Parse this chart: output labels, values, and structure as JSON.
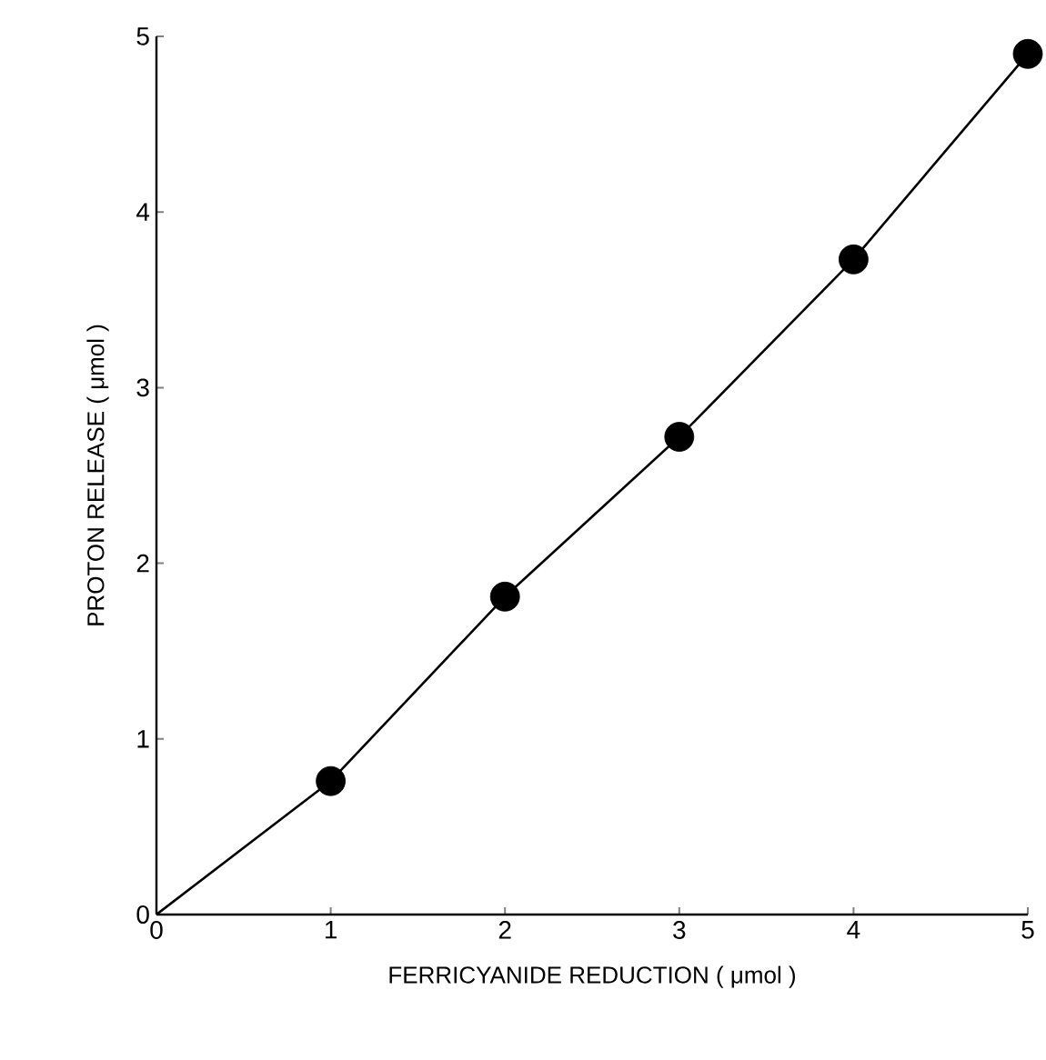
{
  "chart_data": {
    "type": "scatter",
    "xlabel": "FERRICYANIDE REDUCTION ( μmol )",
    "ylabel": "PROTON RELEASE ( μmol )",
    "xlim": [
      0,
      5
    ],
    "ylim": [
      0,
      5
    ],
    "xticks": [
      0,
      1,
      2,
      3,
      4,
      5
    ],
    "yticks": [
      0,
      1,
      2,
      3,
      4,
      5
    ],
    "grid": false,
    "series": [
      {
        "type": "line",
        "color": "#000000",
        "x": [
          0,
          1,
          2,
          3,
          4,
          5
        ],
        "values": [
          0,
          0.76,
          1.81,
          2.72,
          3.73,
          4.9
        ],
        "marker": "none",
        "line_style": "solid"
      },
      {
        "marker": "circle",
        "color": "#000000",
        "x": [
          1,
          2,
          3,
          4,
          5
        ],
        "values": [
          0.76,
          1.81,
          2.72,
          3.73,
          4.9
        ]
      }
    ]
  }
}
